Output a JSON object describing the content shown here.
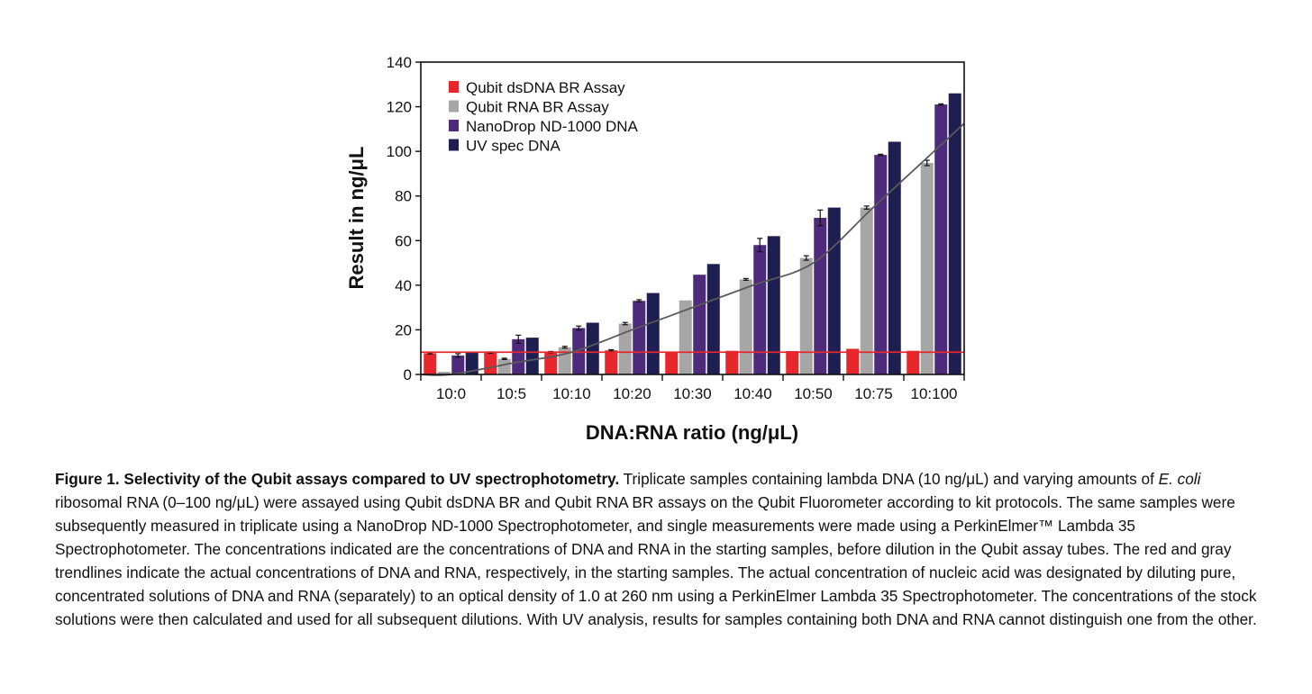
{
  "chart_data": {
    "type": "bar",
    "categories": [
      "10:0",
      "10:5",
      "10:10",
      "10:20",
      "10:30",
      "10:40",
      "10:50",
      "10:75",
      "10:100"
    ],
    "series": [
      {
        "name": "Qubit dsDNA BR Assay",
        "color": "#e8272c",
        "values": [
          9.5,
          9.8,
          10.0,
          10.8,
          10.0,
          10.6,
          10.5,
          11.5,
          10.6
        ],
        "error": [
          0.3,
          0.3,
          0.3,
          0.3,
          0,
          0,
          0,
          0,
          0
        ]
      },
      {
        "name": "Qubit RNA BR Assay",
        "color": "#a6a6a6",
        "values": [
          1.2,
          7.0,
          12.2,
          22.8,
          33.2,
          42.6,
          52.2,
          74.8,
          94.8
        ],
        "error": [
          0,
          0.3,
          0.4,
          0.5,
          0,
          0.4,
          1.0,
          0.7,
          1.2
        ]
      },
      {
        "name": "NanoDrop ND-1000 DNA",
        "color": "#4e2a7b",
        "values": [
          8.5,
          15.8,
          20.8,
          33.0,
          44.7,
          58.0,
          70.2,
          98.4,
          121.0
        ],
        "error": [
          0.8,
          1.8,
          0.9,
          0.5,
          0,
          3.0,
          3.5,
          0.3,
          0.3
        ]
      },
      {
        "name": "UV spec DNA",
        "color": "#1e1f50",
        "values": [
          10.2,
          16.5,
          23.2,
          36.5,
          49.5,
          62.0,
          74.8,
          104.3,
          126.0
        ],
        "error": [
          0,
          0,
          0,
          0,
          0,
          0,
          0,
          0,
          0
        ]
      }
    ],
    "trendlines": [
      {
        "color": "#e8272c",
        "values": [
          10,
          10,
          10,
          10,
          10,
          10,
          10,
          10,
          10
        ]
      },
      {
        "color": "#595959",
        "values": [
          0,
          5,
          10,
          20,
          30,
          40,
          50,
          75,
          100
        ]
      }
    ],
    "xlabel": "DNA:RNA ratio (ng/μL)",
    "ylabel": "Result in ng/μL",
    "ylim": [
      0,
      140
    ],
    "yticks": [
      "0",
      "20",
      "40",
      "60",
      "80",
      "100",
      "120",
      "140"
    ],
    "legend_position": "top-left"
  },
  "caption": {
    "bold": "Figure 1. Selectivity of the Qubit assays compared to UV spectrophotometry.",
    "text_a": " Triplicate samples containing lambda DNA (10 ng/μL) and varying amounts of ",
    "italic": "E. coli",
    "text_b": " ribosomal RNA (0–100 ng/μL) were assayed using Qubit dsDNA BR and Qubit RNA BR assays on the Qubit Fluorometer according to kit protocols. The same samples were subsequently measured in triplicate using a NanoDrop ND-1000 Spectrophotometer, and single measurements were made using a PerkinElmer™ Lambda 35 Spectrophotometer. The concentrations indicated are the concentrations of DNA and RNA in the starting samples, before dilution in the Qubit assay tubes. The red and gray trendlines indicate the actual concentrations of DNA and RNA, respectively, in the starting samples. The actual concentration of nucleic acid was designated by diluting pure, concentrated solutions of DNA and RNA (separately) to an optical density of 1.0 at 260 nm using a PerkinElmer Lambda 35 Spectrophotometer. The concentrations of the stock solutions were then calculated and used for all subsequent dilutions. With UV analysis, results for samples containing both DNA and RNA cannot distinguish one from the other."
  }
}
